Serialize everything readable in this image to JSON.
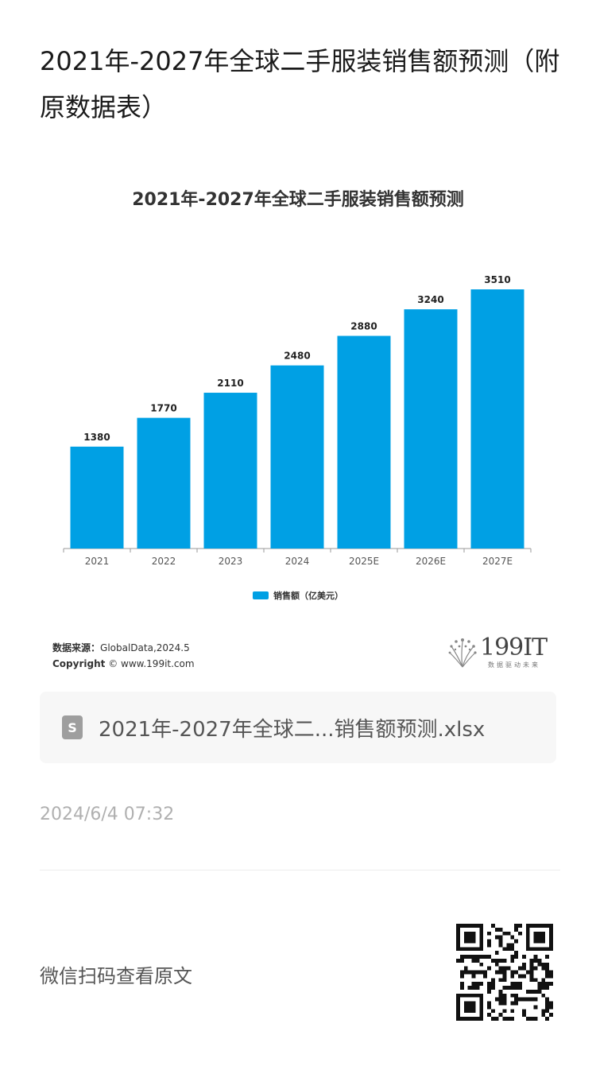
{
  "page": {
    "title": "2021年-2027年全球二手服装销售额预测（附原数据表）"
  },
  "chart_data": {
    "type": "bar",
    "title": "2021年-2027年全球二手服装销售额预测",
    "categories": [
      "2021",
      "2022",
      "2023",
      "2024",
      "2025E",
      "2026E",
      "2027E"
    ],
    "series": [
      {
        "name": "销售额（亿美元）",
        "values": [
          1380,
          1770,
          2110,
          2480,
          2880,
          3240,
          3510
        ]
      }
    ],
    "ylim": [
      0,
      3510
    ],
    "grid": false,
    "legend": "bottom",
    "bar_color": "#00a0e4"
  },
  "source": {
    "source_label": "数据来源：",
    "source_value": "GlobalData,2024.5",
    "copyright_label": "Copyright",
    "copyright_value": "© www.199it.com"
  },
  "logo": {
    "text": "199IT",
    "tagline": "数据驱动未来"
  },
  "attachment": {
    "icon": "spreadsheet-icon",
    "icon_letter": "S",
    "filename": "2021年-2027年全球二...销售额预测.xlsx"
  },
  "meta": {
    "timestamp": "2024/6/4 07:32",
    "scan_prompt": "微信扫码查看原文"
  }
}
